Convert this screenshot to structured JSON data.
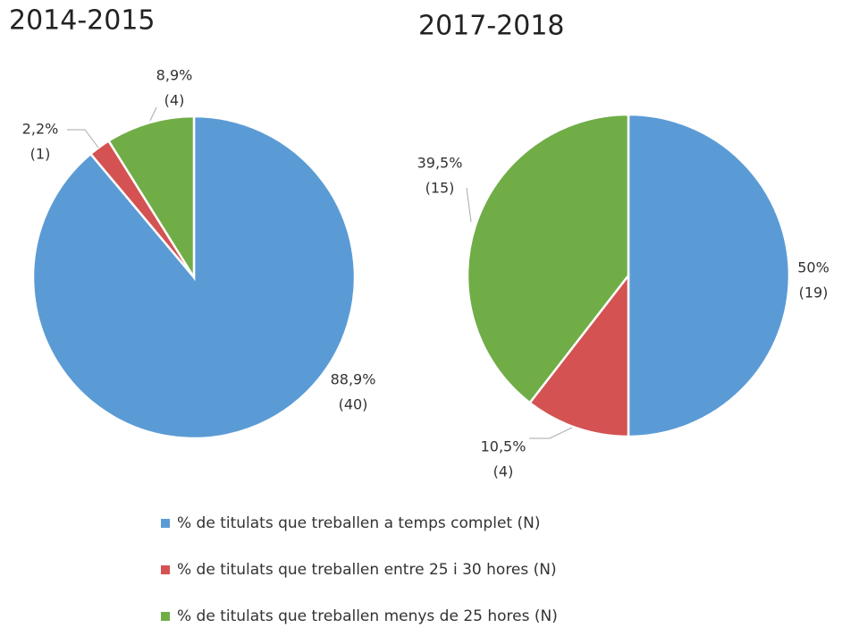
{
  "chart_data": [
    {
      "type": "pie",
      "title": "2014-2015",
      "values": [
        88.9,
        2.2,
        8.9
      ],
      "value_labels": [
        "88,9%",
        "2,2%",
        "8,9%"
      ],
      "counts": [
        40,
        1,
        4
      ],
      "count_labels": [
        "(40)",
        "(1)",
        "(4)"
      ]
    },
    {
      "type": "pie",
      "title": "2017-2018",
      "values": [
        50,
        10.5,
        39.5
      ],
      "value_labels": [
        "50%",
        "10,5%",
        "39,5%"
      ],
      "counts": [
        19,
        4,
        15
      ],
      "count_labels": [
        "(19)",
        "(4)",
        "(15)"
      ]
    }
  ],
  "legend": {
    "entries": [
      "% de titulats que treballen a temps complet (N)",
      "% de titulats que treballen entre 25 i 30 hores (N)",
      "% de titulats que treballen menys de 25 hores (N)"
    ],
    "colors": [
      "#5b9bd5",
      "#d45252",
      "#70ad47"
    ]
  }
}
